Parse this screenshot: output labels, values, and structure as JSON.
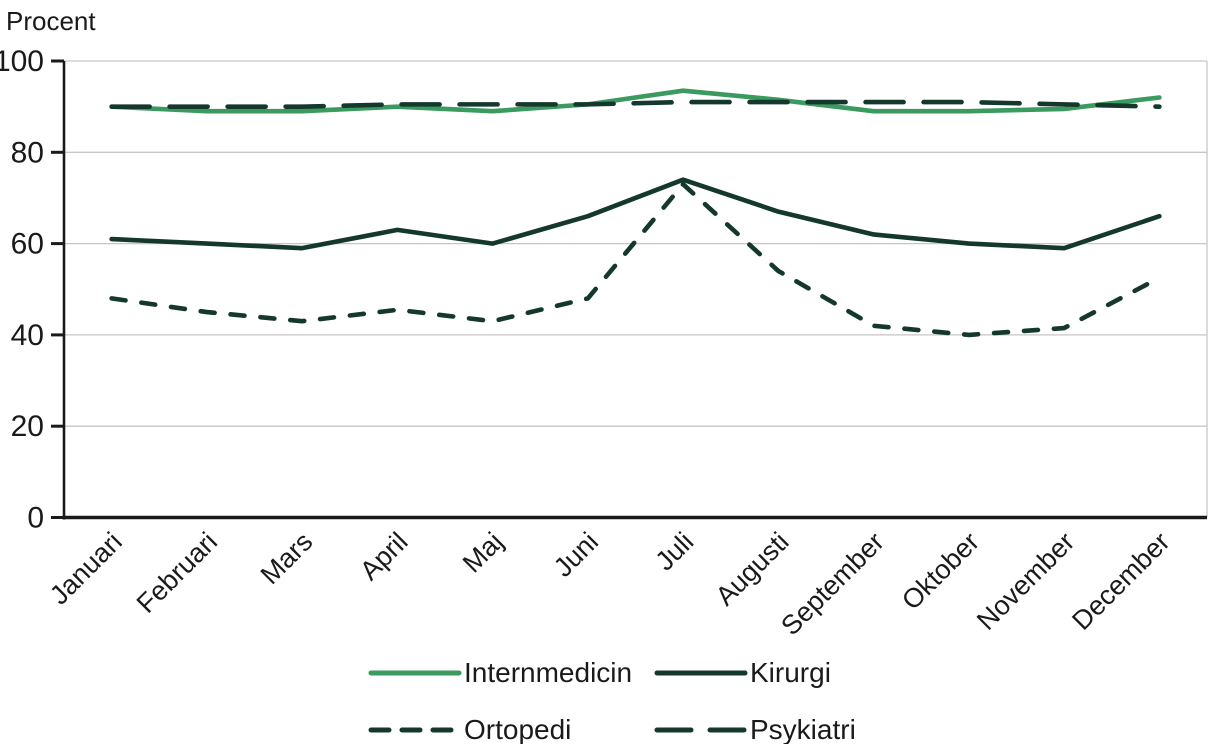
{
  "chart_data": {
    "type": "line",
    "title": "",
    "ylabel": "Procent",
    "xlabel": "",
    "categories": [
      "Januari",
      "Februari",
      "Mars",
      "April",
      "Maj",
      "Juni",
      "Juli",
      "Augusti",
      "September",
      "Oktober",
      "November",
      "December"
    ],
    "ylim": [
      0,
      100
    ],
    "yticks": [
      0,
      20,
      40,
      60,
      80,
      100
    ],
    "grid": "horizontal-light",
    "legend_position": "bottom",
    "axis_color": "#1a1a1a",
    "grid_color": "#c6c6c6",
    "text_color": "#1a1a1a",
    "series": [
      {
        "name": "Internmedicin",
        "color": "#3a9a5f",
        "style": "solid",
        "values": [
          90,
          89,
          89,
          90,
          89,
          90.5,
          93.5,
          91.5,
          89,
          89,
          89.5,
          92
        ]
      },
      {
        "name": "Kirurgi",
        "color": "#14382b",
        "style": "solid",
        "values": [
          61,
          60,
          59,
          63,
          60,
          66,
          74,
          67,
          62,
          60,
          59,
          66
        ]
      },
      {
        "name": "Ortopedi",
        "color": "#14382b",
        "style": "dashed-short",
        "values": [
          48,
          45,
          43,
          45.5,
          43,
          48,
          73,
          54,
          42,
          40,
          41.5,
          52.5
        ]
      },
      {
        "name": "Psykiatri",
        "color": "#14382b",
        "style": "dashed-long",
        "values": [
          90,
          90,
          90,
          90.5,
          90.5,
          90.5,
          91,
          91,
          91,
          91,
          90.5,
          90
        ]
      }
    ]
  }
}
